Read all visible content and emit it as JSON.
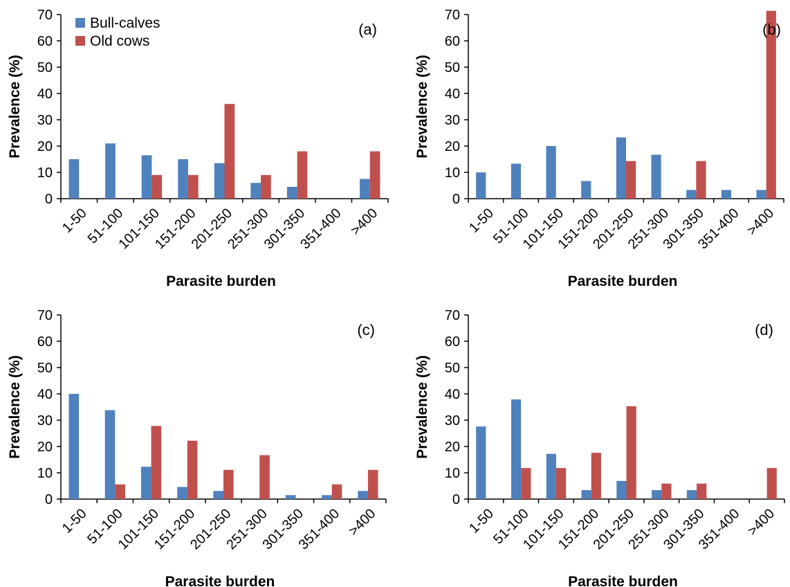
{
  "series_colors": {
    "Bull-calves": "#4f81bd",
    "Old cows": "#c0504d"
  },
  "legend": {
    "entries": [
      "Bull-calves",
      "Old cows"
    ],
    "placement": "top-left of panel (a)"
  },
  "chart_data": [
    {
      "type": "bar",
      "panel_label": "(a)",
      "categories": [
        "1-50",
        "51-100",
        "101-150",
        "151-200",
        "201-250",
        "251-300",
        "301-350",
        "351-400",
        ">400"
      ],
      "series": [
        {
          "name": "Bull-calves",
          "values": [
            15,
            21,
            16.5,
            15,
            13.5,
            6,
            4.5,
            0,
            7.5
          ]
        },
        {
          "name": "Old cows",
          "values": [
            0,
            0,
            9,
            9,
            36,
            9,
            18,
            0,
            18
          ]
        }
      ],
      "xlabel": "Parasite burden",
      "ylabel": "Prevalence (%)",
      "ylim": [
        0,
        70
      ],
      "yticks": [
        0,
        10,
        20,
        30,
        40,
        50,
        60,
        70
      ],
      "grid": false
    },
    {
      "type": "bar",
      "panel_label": "(b)",
      "categories": [
        "1-50",
        "51-100",
        "101-150",
        "151-200",
        "201-250",
        "251-300",
        "301-350",
        "351-400",
        ">400"
      ],
      "series": [
        {
          "name": "Bull-calves",
          "values": [
            10,
            13.3,
            20,
            6.7,
            23.3,
            16.7,
            3.3,
            3.3,
            3.3
          ]
        },
        {
          "name": "Old cows",
          "values": [
            0,
            0,
            0,
            0,
            14.3,
            0,
            14.3,
            0,
            71.4
          ]
        }
      ],
      "xlabel": "Parasite burden",
      "ylabel": "Prevalence (%)",
      "ylim": [
        0,
        70
      ],
      "yticks": [
        0,
        10,
        20,
        30,
        40,
        50,
        60,
        70
      ],
      "grid": false
    },
    {
      "type": "bar",
      "panel_label": "(c)",
      "categories": [
        "1-50",
        "51-100",
        "101-150",
        "151-200",
        "201-250",
        "251-300",
        "301-350",
        "351-400",
        ">400"
      ],
      "series": [
        {
          "name": "Bull-calves",
          "values": [
            40,
            33.8,
            12.3,
            4.6,
            3.1,
            0,
            1.5,
            1.5,
            3.1
          ]
        },
        {
          "name": "Old cows",
          "values": [
            0,
            5.6,
            27.8,
            22.2,
            11.1,
            16.7,
            0,
            5.6,
            11.1
          ]
        }
      ],
      "xlabel": "Parasite burden",
      "ylabel": "Prevalence (%)",
      "ylim": [
        0,
        70
      ],
      "yticks": [
        0,
        10,
        20,
        30,
        40,
        50,
        60,
        70
      ],
      "grid": false
    },
    {
      "type": "bar",
      "panel_label": "(d)",
      "categories": [
        "1-50",
        "51-100",
        "101-150",
        "151-200",
        "201-250",
        "251-300",
        "301-350",
        "351-400",
        ">400"
      ],
      "series": [
        {
          "name": "Bull-calves",
          "values": [
            27.6,
            37.9,
            17.2,
            3.4,
            6.9,
            3.4,
            3.4,
            0,
            0
          ]
        },
        {
          "name": "Old cows",
          "values": [
            0,
            11.8,
            11.8,
            17.6,
            35.3,
            5.9,
            5.9,
            0,
            11.8
          ]
        }
      ],
      "xlabel": "Parasite burden",
      "ylabel": "Prevalence (%)",
      "ylim": [
        0,
        70
      ],
      "yticks": [
        0,
        10,
        20,
        30,
        40,
        50,
        60,
        70
      ],
      "grid": false
    }
  ]
}
